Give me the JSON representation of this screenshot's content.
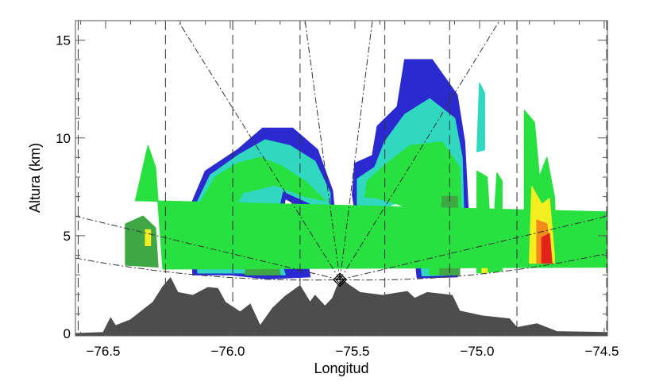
{
  "chart_data": {
    "type": "area",
    "xlabel": "Longitud",
    "ylabel": "Altura (km)",
    "xlim": [
      -76.621,
      -74.487
    ],
    "ylim": [
      -0.12,
      16
    ],
    "x_ticks": [
      -76.5,
      -76.0,
      -75.5,
      -75.0,
      -74.5
    ],
    "x_tick_labels": [
      "−76.5",
      "−76.0",
      "−75.5",
      "−75.0",
      "−74.5"
    ],
    "x_minor_step": 0.1,
    "y_ticks": [
      0,
      5,
      10,
      15
    ],
    "y_tick_labels": [
      "0",
      "5",
      "10",
      "15"
    ],
    "y_minor_step": 1,
    "grid": false,
    "colors": {
      "terrain": "#4d4d4d",
      "blue": "#2a2ad0",
      "cyan": "#30d8c0",
      "green": "#28e040",
      "dark_green": "#3fa845",
      "yellow": "#f2ee20",
      "orange": "#f28a1c",
      "red": "#e4241c"
    },
    "radar": {
      "lon": -75.56,
      "alt": 2.75
    },
    "terrain": [
      [
        -76.621,
        0
      ],
      [
        -76.51,
        0.05
      ],
      [
        -76.48,
        0.8
      ],
      [
        -76.46,
        0.4
      ],
      [
        -76.4,
        0.7
      ],
      [
        -76.31,
        1.6
      ],
      [
        -76.27,
        2.4
      ],
      [
        -76.24,
        2.85
      ],
      [
        -76.21,
        2.1
      ],
      [
        -76.15,
        1.95
      ],
      [
        -76.09,
        2.35
      ],
      [
        -76.05,
        2.3
      ],
      [
        -76.02,
        1.6
      ],
      [
        -75.96,
        1.1
      ],
      [
        -75.92,
        1.5
      ],
      [
        -75.88,
        0.4
      ],
      [
        -75.83,
        1.3
      ],
      [
        -75.78,
        1.9
      ],
      [
        -75.72,
        2.45
      ],
      [
        -75.68,
        1.6
      ],
      [
        -75.66,
        1.95
      ],
      [
        -75.62,
        1.4
      ],
      [
        -75.59,
        1.8
      ],
      [
        -75.57,
        2.45
      ],
      [
        -75.55,
        2.75
      ],
      [
        -75.52,
        2.45
      ],
      [
        -75.48,
        2.1
      ],
      [
        -75.39,
        1.95
      ],
      [
        -75.29,
        2.15
      ],
      [
        -75.26,
        1.8
      ],
      [
        -75.21,
        2.1
      ],
      [
        -75.11,
        1.95
      ],
      [
        -75.08,
        1.15
      ],
      [
        -74.99,
        0.9
      ],
      [
        -74.88,
        0.75
      ],
      [
        -74.85,
        0.3
      ],
      [
        -74.77,
        0.5
      ],
      [
        -74.69,
        0.1
      ],
      [
        -74.487,
        0.05
      ]
    ],
    "echoes": [
      {
        "color": "blue",
        "points": [
          [
            -76.15,
            3.0
          ],
          [
            -76.16,
            6.5
          ],
          [
            -76.1,
            8.3
          ],
          [
            -75.97,
            9.4
          ],
          [
            -75.87,
            10.5
          ],
          [
            -75.75,
            10.5
          ],
          [
            -75.65,
            9.4
          ],
          [
            -75.59,
            7.3
          ],
          [
            -75.58,
            5.9
          ],
          [
            -75.66,
            6.1
          ],
          [
            -75.78,
            6.9
          ],
          [
            -75.8,
            5.0
          ],
          [
            -75.7,
            4.5
          ],
          [
            -75.68,
            2.9
          ],
          [
            -75.85,
            2.8
          ],
          [
            -76.0,
            3.0
          ]
        ]
      },
      {
        "color": "cyan",
        "points": [
          [
            -76.13,
            3.1
          ],
          [
            -76.14,
            6.5
          ],
          [
            -76.08,
            8.1
          ],
          [
            -75.97,
            9.1
          ],
          [
            -75.86,
            9.9
          ],
          [
            -75.76,
            9.6
          ],
          [
            -75.66,
            8.8
          ],
          [
            -75.6,
            7.2
          ],
          [
            -75.6,
            6.2
          ],
          [
            -75.67,
            6.6
          ],
          [
            -75.79,
            7.3
          ],
          [
            -75.83,
            5.0
          ],
          [
            -75.78,
            3.0
          ],
          [
            -75.95,
            3.1
          ]
        ]
      },
      {
        "color": "green",
        "points": [
          [
            -76.11,
            4.5
          ],
          [
            -76.12,
            6.7
          ],
          [
            -76.06,
            8.0
          ],
          [
            -75.97,
            8.7
          ],
          [
            -75.88,
            9.0
          ],
          [
            -75.8,
            8.6
          ],
          [
            -75.7,
            7.8
          ],
          [
            -75.62,
            6.8
          ],
          [
            -75.7,
            7.0
          ],
          [
            -75.82,
            7.6
          ],
          [
            -75.95,
            7.2
          ],
          [
            -76.0,
            6.0
          ],
          [
            -76.05,
            4.5
          ]
        ]
      },
      {
        "color": "dark_green",
        "points": [
          [
            -75.94,
            3.0
          ],
          [
            -75.93,
            4.5
          ],
          [
            -75.86,
            5.3
          ],
          [
            -75.82,
            4.6
          ],
          [
            -75.8,
            3.0
          ]
        ]
      },
      {
        "color": "blue",
        "points": [
          [
            -75.5,
            6.3
          ],
          [
            -75.51,
            7.1
          ],
          [
            -75.5,
            8.7
          ],
          [
            -75.43,
            9.1
          ],
          [
            -75.41,
            10.6
          ],
          [
            -75.33,
            11.6
          ],
          [
            -75.3,
            14.0
          ],
          [
            -75.19,
            14.0
          ],
          [
            -75.09,
            12.2
          ],
          [
            -75.06,
            9.8
          ],
          [
            -75.04,
            4.9
          ],
          [
            -75.09,
            2.9
          ],
          [
            -75.25,
            2.85
          ],
          [
            -75.27,
            5.3
          ],
          [
            -75.32,
            7.3
          ],
          [
            -75.43,
            6.7
          ]
        ]
      },
      {
        "color": "cyan",
        "points": [
          [
            -75.49,
            6.6
          ],
          [
            -75.49,
            7.9
          ],
          [
            -75.42,
            8.5
          ],
          [
            -75.38,
            9.8
          ],
          [
            -75.3,
            11.2
          ],
          [
            -75.2,
            12.0
          ],
          [
            -75.1,
            11.0
          ],
          [
            -75.07,
            9.0
          ],
          [
            -75.06,
            4.5
          ],
          [
            -75.1,
            3.0
          ],
          [
            -75.23,
            2.95
          ],
          [
            -75.25,
            5.2
          ],
          [
            -75.3,
            6.8
          ],
          [
            -75.42,
            6.3
          ]
        ]
      },
      {
        "color": "green",
        "points": [
          [
            -75.46,
            7.0
          ],
          [
            -75.45,
            7.8
          ],
          [
            -75.38,
            8.6
          ],
          [
            -75.28,
            9.6
          ],
          [
            -75.15,
            9.8
          ],
          [
            -75.08,
            8.5
          ],
          [
            -75.07,
            4.5
          ],
          [
            -75.11,
            3.0
          ],
          [
            -75.2,
            3.0
          ],
          [
            -75.22,
            5.0
          ],
          [
            -75.3,
            6.5
          ],
          [
            -75.4,
            6.9
          ]
        ]
      },
      {
        "color": "dark_green",
        "points": [
          [
            -75.15,
            7.0
          ],
          [
            -75.09,
            7.0
          ],
          [
            -75.08,
            3.0
          ],
          [
            -75.16,
            3.0
          ]
        ]
      },
      {
        "color": "cyan",
        "points": [
          [
            -75.01,
            9.3
          ],
          [
            -75.0,
            12.8
          ],
          [
            -74.98,
            12.3
          ],
          [
            -74.98,
            9.4
          ]
        ]
      },
      {
        "color": "green",
        "points": [
          [
            -75.01,
            3.1
          ],
          [
            -75.01,
            8.3
          ],
          [
            -74.97,
            8.0
          ],
          [
            -74.95,
            4.0
          ],
          [
            -74.93,
            8.2
          ],
          [
            -74.91,
            7.8
          ],
          [
            -74.91,
            3.2
          ]
        ]
      },
      {
        "color": "yellow",
        "points": [
          [
            -74.99,
            3.1
          ],
          [
            -74.99,
            4.6
          ],
          [
            -74.97,
            4.4
          ],
          [
            -74.97,
            3.1
          ]
        ]
      },
      {
        "color": "green",
        "points": [
          [
            -74.44,
            3.4
          ],
          [
            -74.44,
            6.2
          ],
          [
            -76.38,
            6.8
          ],
          [
            -76.33,
            9.6
          ],
          [
            -76.3,
            8.5
          ],
          [
            -76.27,
            3.3
          ]
        ]
      },
      {
        "color": "dark_green",
        "points": [
          [
            -76.42,
            3.5
          ],
          [
            -76.42,
            5.6
          ],
          [
            -76.35,
            6.0
          ],
          [
            -76.3,
            5.4
          ],
          [
            -76.29,
            3.4
          ]
        ]
      },
      {
        "color": "yellow",
        "points": [
          [
            -76.34,
            4.5
          ],
          [
            -76.34,
            5.3
          ],
          [
            -76.32,
            5.3
          ],
          [
            -76.32,
            4.5
          ]
        ]
      },
      {
        "color": "green",
        "points": [
          [
            -74.82,
            3.5
          ],
          [
            -74.82,
            11.4
          ],
          [
            -74.78,
            10.8
          ],
          [
            -74.76,
            8.0
          ],
          [
            -74.73,
            9.0
          ],
          [
            -74.7,
            7.0
          ],
          [
            -74.69,
            3.6
          ]
        ]
      },
      {
        "color": "yellow",
        "points": [
          [
            -74.8,
            3.6
          ],
          [
            -74.79,
            7.5
          ],
          [
            -74.75,
            6.6
          ],
          [
            -74.72,
            6.9
          ],
          [
            -74.7,
            4.0
          ],
          [
            -74.7,
            3.6
          ]
        ]
      },
      {
        "color": "orange",
        "points": [
          [
            -74.77,
            3.6
          ],
          [
            -74.77,
            5.8
          ],
          [
            -74.73,
            5.6
          ],
          [
            -74.71,
            3.6
          ]
        ]
      },
      {
        "color": "red",
        "points": [
          [
            -74.75,
            3.6
          ],
          [
            -74.75,
            4.9
          ],
          [
            -74.72,
            5.1
          ],
          [
            -74.71,
            3.6
          ]
        ]
      }
    ],
    "beam_lines": [
      {
        "to": [
          -76.621,
          6.0
        ]
      },
      {
        "to": [
          -74.487,
          6.0
        ]
      },
      {
        "to": [
          -76.21,
          16
        ]
      },
      {
        "to": [
          -75.7,
          16
        ]
      },
      {
        "to": [
          -75.43,
          16
        ]
      },
      {
        "to": [
          -74.92,
          16
        ]
      }
    ],
    "lowest_beam": {
      "left": [
        -76.621,
        3.86
      ],
      "right": [
        -74.487,
        4.1
      ]
    },
    "range_lines_lon": [
      -76.61,
      -76.26,
      -75.99,
      -75.72,
      -75.38,
      -75.12,
      -74.85,
      -74.49
    ]
  }
}
